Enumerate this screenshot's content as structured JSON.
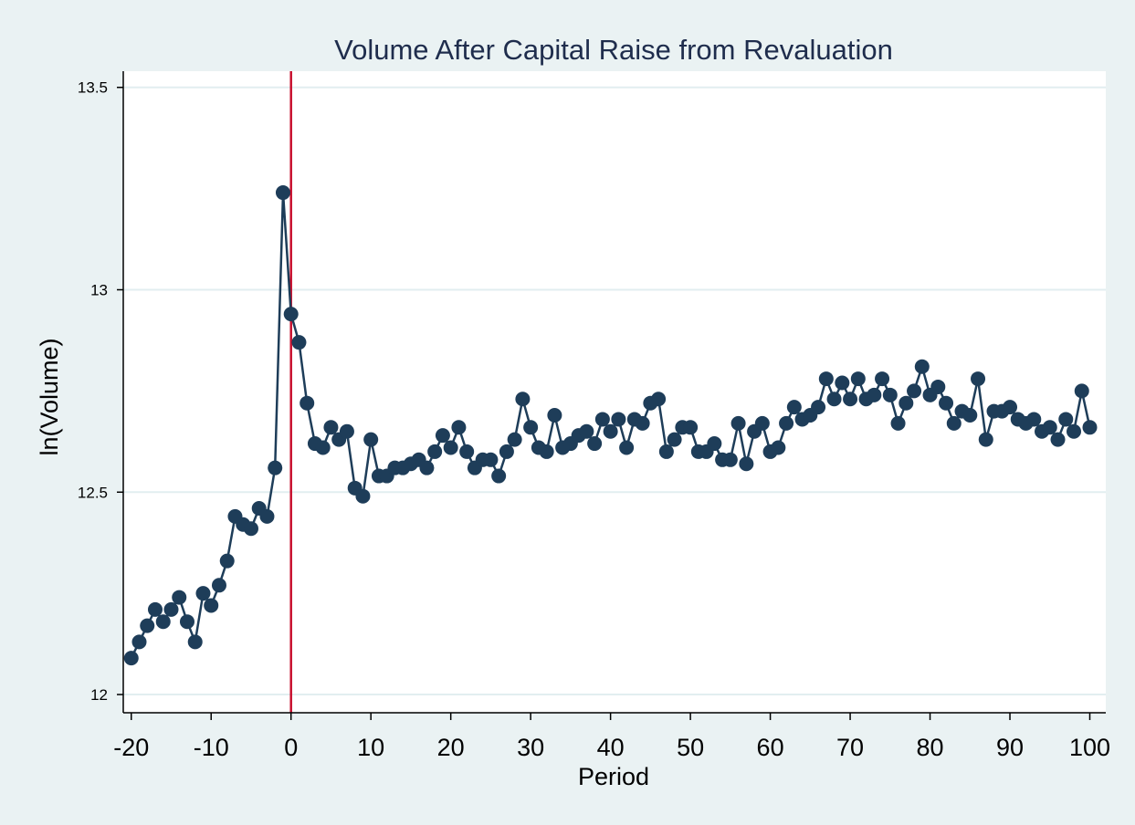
{
  "chart_data": {
    "type": "line",
    "title": "Volume  After Capital Raise from Revaluation",
    "xlabel": "Period",
    "ylabel": "ln(Volume)",
    "xlim": [
      -21,
      102
    ],
    "ylim": [
      11.955,
      13.54
    ],
    "xticks": [
      -20,
      -10,
      0,
      10,
      20,
      30,
      40,
      50,
      60,
      70,
      80,
      90,
      100
    ],
    "xtick_labels": [
      "-20",
      "-10",
      "0",
      "10",
      "20",
      "30",
      "40",
      "50",
      "60",
      "70",
      "80",
      "90",
      "100"
    ],
    "yticks": [
      12,
      12.5,
      13,
      13.5
    ],
    "ytick_labels": [
      "12",
      "12.5",
      "13",
      "13.5"
    ],
    "grid": "horizontal",
    "reference_line": {
      "x": 0,
      "color": "#c8102e"
    },
    "line_color": "#1e3d59",
    "marker_color": "#1e3d59",
    "series": [
      {
        "x": [
          -20,
          -19,
          -18,
          -17,
          -16,
          -15,
          -14,
          -13,
          -12,
          -11,
          -10,
          -9,
          -8,
          -7,
          -6,
          -5,
          -4,
          -3,
          -2,
          -1,
          0,
          1,
          2,
          3,
          4,
          5,
          6,
          7,
          8,
          9,
          10,
          11,
          12,
          13,
          14,
          15,
          16,
          17,
          18,
          19,
          20,
          21,
          22,
          23,
          24,
          25,
          26,
          27,
          28,
          29,
          30,
          31,
          32,
          33,
          34,
          35,
          36,
          37,
          38,
          39,
          40,
          41,
          42,
          43,
          44,
          45,
          46,
          47,
          48,
          49,
          50,
          51,
          52,
          53,
          54,
          55,
          56,
          57,
          58,
          59,
          60,
          61,
          62,
          63,
          64,
          65,
          66,
          67,
          68,
          69,
          70,
          71,
          72,
          73,
          74,
          75,
          76,
          77,
          78,
          79,
          80,
          81,
          82,
          83,
          84,
          85,
          86,
          87,
          88,
          89,
          90,
          91,
          92,
          93,
          94,
          95,
          96,
          97,
          98,
          99,
          100
        ],
        "values": [
          12.09,
          12.13,
          12.17,
          12.21,
          12.18,
          12.21,
          12.24,
          12.18,
          12.13,
          12.25,
          12.22,
          12.27,
          12.33,
          12.44,
          12.42,
          12.41,
          12.46,
          12.44,
          12.56,
          13.24,
          12.94,
          12.87,
          12.72,
          12.62,
          12.61,
          12.66,
          12.63,
          12.65,
          12.51,
          12.49,
          12.63,
          12.54,
          12.54,
          12.56,
          12.56,
          12.57,
          12.58,
          12.56,
          12.6,
          12.64,
          12.61,
          12.66,
          12.6,
          12.56,
          12.58,
          12.58,
          12.54,
          12.6,
          12.63,
          12.73,
          12.66,
          12.61,
          12.6,
          12.69,
          12.61,
          12.62,
          12.64,
          12.65,
          12.62,
          12.68,
          12.65,
          12.68,
          12.61,
          12.68,
          12.67,
          12.72,
          12.73,
          12.6,
          12.63,
          12.66,
          12.66,
          12.6,
          12.6,
          12.62,
          12.58,
          12.58,
          12.67,
          12.57,
          12.65,
          12.67,
          12.6,
          12.61,
          12.67,
          12.71,
          12.68,
          12.69,
          12.71,
          12.78,
          12.73,
          12.77,
          12.73,
          12.78,
          12.73,
          12.74,
          12.78,
          12.74,
          12.67,
          12.72,
          12.75,
          12.81,
          12.74,
          12.76,
          12.72,
          12.67,
          12.7,
          12.69,
          12.78,
          12.63,
          12.7,
          12.7,
          12.71,
          12.68,
          12.67,
          12.68,
          12.65,
          12.66,
          12.63,
          12.68,
          12.65,
          12.75,
          12.66
        ]
      }
    ]
  }
}
